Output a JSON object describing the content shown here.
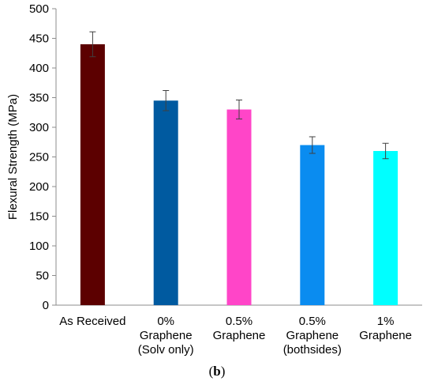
{
  "chart_data": {
    "type": "bar",
    "categories": [
      [
        "As Received"
      ],
      [
        "0%",
        "Graphene",
        "(Solv only)"
      ],
      [
        "0.5%",
        "Graphene"
      ],
      [
        "0.5%",
        "Graphene",
        "(bothsides)"
      ],
      [
        "1%",
        "Graphene"
      ]
    ],
    "values": [
      440,
      345,
      330,
      270,
      260
    ],
    "errors": [
      21,
      17,
      16,
      14,
      13
    ],
    "colors": [
      "#5c0000",
      "#005aa0",
      "#ff45c8",
      "#0a8cf0",
      "#00ffff"
    ],
    "ylabel": "Flexural Strength (MPa)",
    "ylim": [
      0,
      500
    ],
    "yticks": [
      0,
      50,
      100,
      150,
      200,
      250,
      300,
      350,
      400,
      450,
      500
    ],
    "grid": false,
    "legend": "none"
  },
  "panel_label": {
    "open": "(",
    "letter": "b",
    "close": ")"
  }
}
